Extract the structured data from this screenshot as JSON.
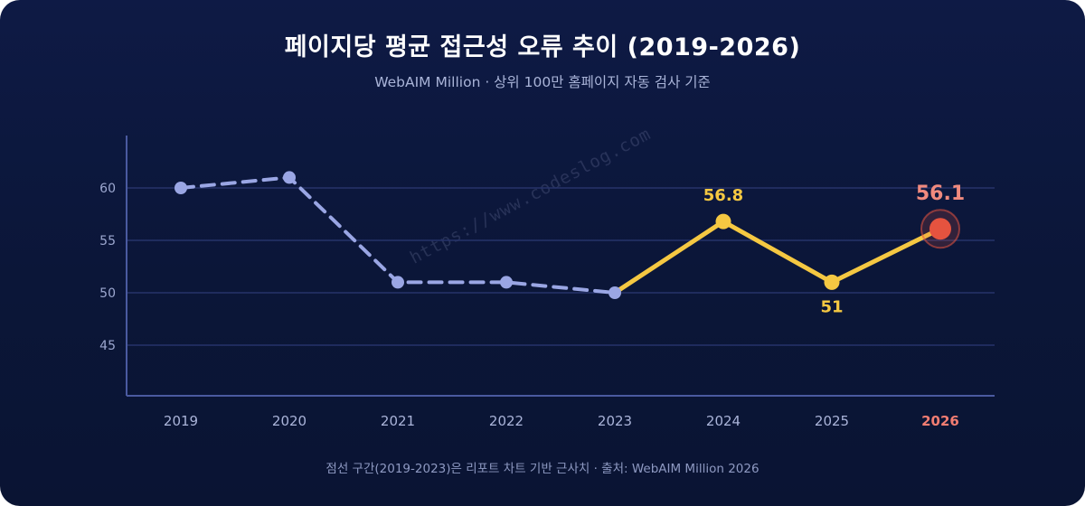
{
  "title": "페이지당 평균 접근성 오류 추이 (2019-2026)",
  "subtitle": "WebAIM Million · 상위 100만 홈페이지 자동 검사 기준",
  "footnote": "점선 구간(2019-2023)은 리포트 차트 기반 근사치 · 출처: WebAIM Million 2026",
  "watermark": "https://www.codeslog.com",
  "colors": {
    "estimate": "#9aa6e4",
    "actual": "#f5c842",
    "highlight": "#e5533f",
    "grid": "#26336a",
    "axis": "#4a5aa0"
  },
  "chart_data": {
    "type": "line",
    "title": "페이지당 평균 접근성 오류 추이 (2019-2026)",
    "subtitle": "WebAIM Million · 상위 100만 홈페이지 자동 검사 기준",
    "xlabel": "",
    "ylabel": "",
    "x": [
      "2019",
      "2020",
      "2021",
      "2022",
      "2023",
      "2024",
      "2025",
      "2026"
    ],
    "values": [
      60,
      61,
      51,
      51,
      50,
      56.8,
      51,
      56.1
    ],
    "dashed_range": [
      "2019",
      "2023"
    ],
    "solid_range": [
      "2023",
      "2026"
    ],
    "highlight_x": "2026",
    "data_labels": [
      {
        "x": "2024",
        "text": "56.8",
        "position": "above"
      },
      {
        "x": "2025",
        "text": "51",
        "position": "below"
      },
      {
        "x": "2026",
        "text": "56.1",
        "position": "above"
      }
    ],
    "yticks": [
      45,
      50,
      55,
      60
    ],
    "ylim": [
      40,
      65
    ],
    "grid": true,
    "legend": "none"
  }
}
